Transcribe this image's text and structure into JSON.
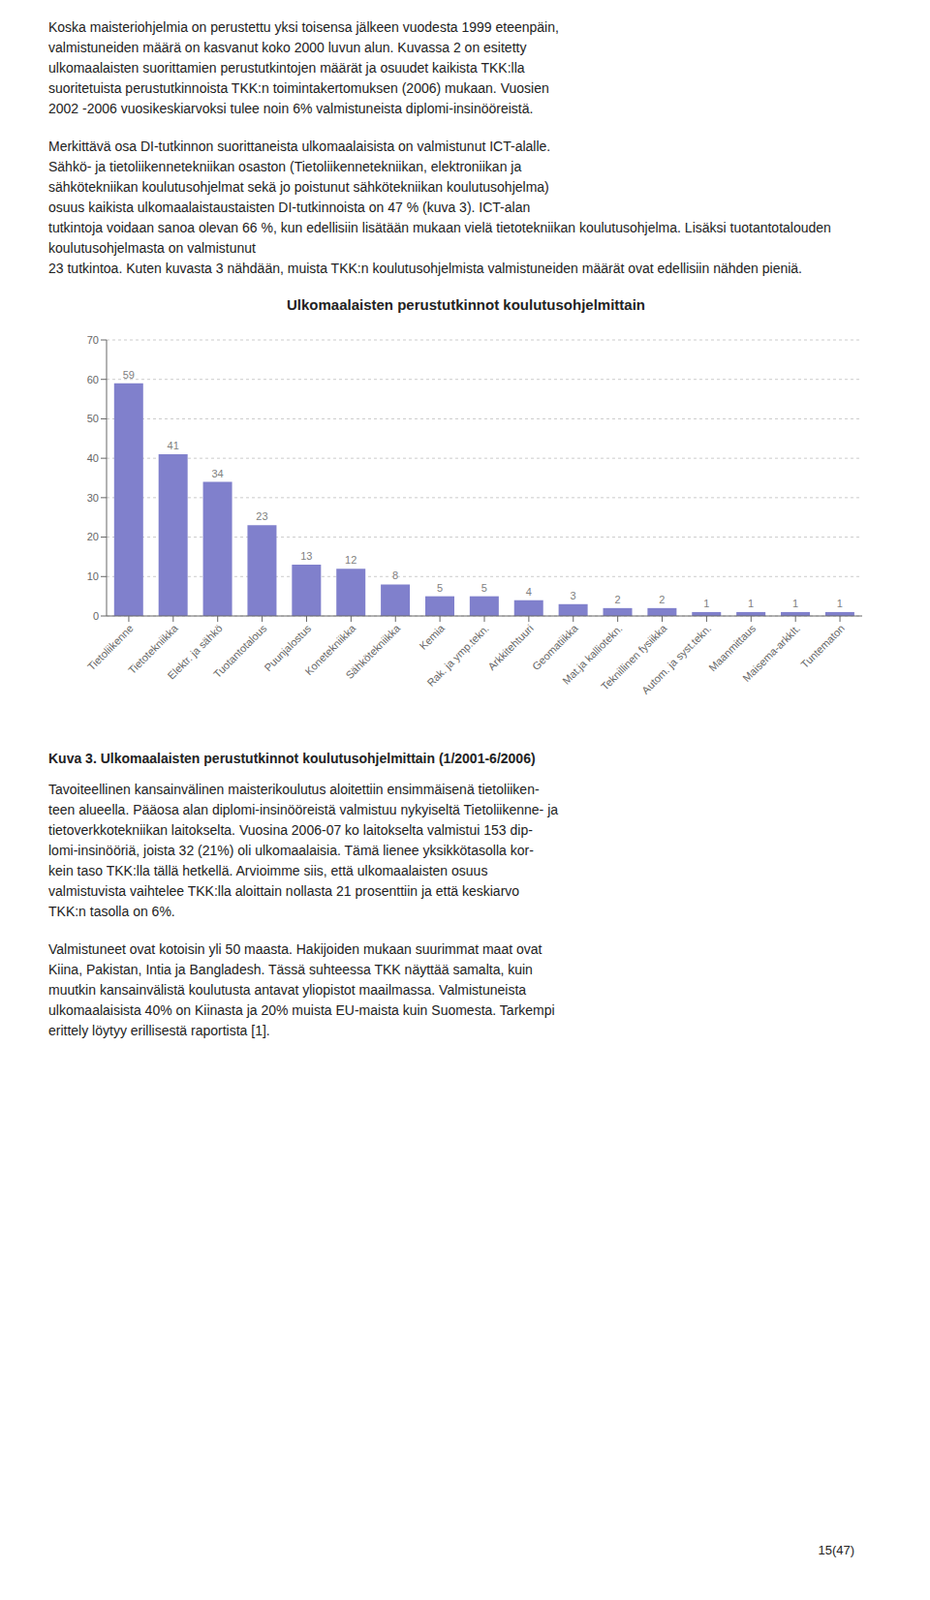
{
  "chart_data": {
    "type": "bar",
    "title": "Ulkomaalaisten perustutkinnot koulutusohjelmittain",
    "categories": [
      "Tietoliikenne",
      "Tietotekniikka",
      "Elektr. ja sähkö",
      "Tuotantotalous",
      "Puunjalostus",
      "Konetekniikka",
      "Sähkötekniikka",
      "Kemia",
      "Rak. ja ymp.tekn.",
      "Arkkitehtuuri",
      "Geomatiikka",
      "Mat.ja kalliotekn.",
      "Teknillinen fysiikka",
      "Autom. ja syst.tekn.",
      "Maanmittaus",
      "Maisema-arkkIt.",
      "Tuntematon"
    ],
    "values": [
      59,
      41,
      34,
      23,
      13,
      12,
      8,
      5,
      5,
      4,
      3,
      2,
      2,
      1,
      1,
      1,
      1
    ],
    "color": "#8080cc",
    "ylim": [
      0,
      70
    ],
    "yticks": [
      0,
      10,
      20,
      30,
      40,
      50,
      60,
      70
    ],
    "grid": true,
    "data_labels": true
  },
  "paragraphs_before": [
    [
      "Koska maisteriohjelmia on perustettu yksi toisensa jälkeen vuodesta 1999 eteenpäin,",
      "valmistuneiden määrä on kasvanut koko 2000 luvun alun. Kuvassa 2 on esitetty",
      "ulkomaalaisten suorittamien perustutkintojen määrät ja osuudet kaikista TKK:lla",
      "suoritetuista perustutkinnoista TKK:n toimintakertomuksen (2006) mukaan. Vuosien",
      "2002 -2006 vuosikeskiarvoksi tulee noin 6% valmistuneista diplomi-insinööreistä."
    ],
    [
      "Merkittävä osa DI-tutkinnon suorittaneista ulkomaalaisista on valmistunut ICT-alalle.",
      "Sähkö- ja tietoliikennetekniikan osaston (Tietoliikennetekniikan, elektroniikan ja",
      "sähkötekniikan koulutusohjelmat sekä jo poistunut sähkötekniikan koulutusohjelma)",
      "osuus kaikista ulkomaalaistaustaisten DI-tutkinnoista on 47 % (kuva 3). ICT-alan",
      "tutkintoja voidaan sanoa olevan 66 %, kun edellisiin lisätään mukaan vielä tietotekniikan koulutusohjelma. Lisäksi tuotantotalouden koulutusohjelmasta on valmistunut",
      "23 tutkintoa. Kuten kuvasta 3 nähdään, muista TKK:n koulutusohjelmista valmistuneiden määrät ovat edellisiin nähden pieniä."
    ]
  ],
  "caption": "Kuva 3. Ulkomaalaisten perustutkinnot koulutusohjelmittain (1/2001-6/2006)",
  "paragraphs_after": [
    [
      "Tavoiteellinen kansainvälinen maisterikoulutus aloitettiin ensimmäisenä tietoliiken-",
      "teen alueella. Pääosa alan diplomi-insinööreistä valmistuu nykyiseltä Tietoliikenne- ja",
      "tietoverkkotekniikan laitokselta. Vuosina 2006-07 ko laitokselta valmistui 153 dip-",
      "lomi-insinööriä, joista 32 (21%) oli ulkomaalaisia. Tämä lienee yksikkötasolla kor-",
      "kein taso TKK:lla tällä hetkellä. Arvioimme siis, että ulkomaalaisten osuus",
      "valmistuvista vaihtelee TKK:lla aloittain nollasta 21 prosenttiin ja että keskiarvo",
      "TKK:n tasolla on 6%."
    ],
    [
      "Valmistuneet ovat kotoisin yli 50 maasta. Hakijoiden mukaan suurimmat maat ovat",
      "Kiina, Pakistan, Intia ja Bangladesh. Tässä suhteessa TKK näyttää samalta, kuin",
      "muutkin kansainvälistä koulutusta antavat yliopistot maailmassa. Valmistuneista",
      "ulkomaalaisista 40% on Kiinasta ja 20% muista EU-maista kuin Suomesta. Tarkempi",
      "erittely löytyy erillisestä raportista [1]."
    ]
  ],
  "page_number": "15(47)"
}
